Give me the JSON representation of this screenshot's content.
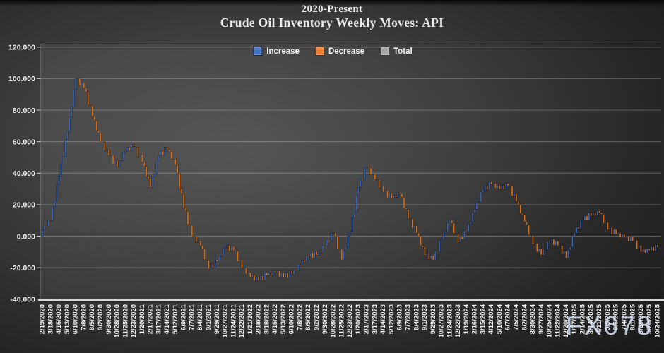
{
  "title": {
    "line1": "2020-Present",
    "line2": "Crude Oil Inventory Weekly Moves: API"
  },
  "watermark": "FX678",
  "legend": [
    {
      "label": "Increase",
      "color": "#4472C4"
    },
    {
      "label": "Decrease",
      "color": "#ED7D31"
    },
    {
      "label": "Total",
      "color": "#A5A5A5"
    }
  ],
  "colors": {
    "increase": "#4472C4",
    "decrease": "#ED7D31",
    "total": "#A5A5A5",
    "increase_bar": "#3763b4",
    "decrease_bar": "#d66c14",
    "grid": "rgba(255,255,255,0.26)",
    "axis_band": "#d6d6d6",
    "text": "#f2f2f2"
  },
  "chart_data": {
    "type": "bar",
    "subtype": "waterfall-weekly-changes",
    "title": "2020-Present Crude Oil Inventory Weekly Moves: API",
    "xlabel": "",
    "ylabel": "",
    "ylim": [
      -40,
      120
    ],
    "grid": "horizontal",
    "legend_position": "top-center",
    "y_tick_values": [
      120,
      100,
      80,
      60,
      40,
      20,
      0,
      -20,
      -40
    ],
    "y_tick_labels": [
      "120.000",
      "100.000",
      "80.000",
      "60.000",
      "40.000",
      "20.000",
      "0.000",
      "-20.000",
      "-40.000"
    ],
    "weeks_per_tick": 4,
    "x_tick_labels": [
      "2/19/2020",
      "3/18/2020",
      "4/15/2020",
      "5/13/2020",
      "6/10/2020",
      "7/8/2020",
      "8/5/2020",
      "9/2/2020",
      "9/30/2020",
      "10/28/2020",
      "11/25/2020",
      "12/23/2020",
      "1/20/2021",
      "2/17/2021",
      "3/17/2021",
      "4/14/2021",
      "5/12/2021",
      "6/9/2021",
      "7/7/2021",
      "8/4/2021",
      "9/1/2021",
      "9/29/2021",
      "10/27/2021",
      "11/24/2021",
      "12/22/2021",
      "1/21/2022",
      "2/18/2022",
      "3/18/2022",
      "4/15/2022",
      "5/13/2022",
      "6/10/2022",
      "7/8/2022",
      "8/5/2022",
      "9/2/2022",
      "9/30/2022",
      "10/28/2022",
      "11/25/2022",
      "12/23/2022",
      "1/20/2023",
      "2/17/2023",
      "3/17/2023",
      "4/14/2023",
      "5/12/2023",
      "6/9/2023",
      "7/7/2023",
      "8/4/2023",
      "9/1/2023",
      "9/29/2023",
      "10/27/2023",
      "11/24/2023",
      "12/22/2023",
      "1/19/2024",
      "2/16/2024",
      "3/15/2024",
      "4/12/2024",
      "5/10/2024",
      "6/7/2024",
      "7/5/2024",
      "8/2/2024",
      "8/30/2024",
      "9/27/2024",
      "10/25/2024",
      "11/22/2024",
      "12/20/2024",
      "1/17/2025",
      "2/14/2025",
      "3/14/2025",
      "4/11/2025",
      "5/9/2025",
      "6/6/2025",
      "7/4/2025",
      "8/1/2025",
      "8/29/2025",
      "9/26/2025",
      "10/24/2025"
    ],
    "anchor_cumulative": [
      4,
      10,
      38,
      66,
      100,
      94,
      76,
      60,
      51,
      44,
      54,
      57,
      47,
      31,
      51,
      55,
      45,
      18,
      0,
      -6,
      -21,
      -16,
      -7,
      -9,
      -20,
      -26,
      -28,
      -25,
      -23,
      -26,
      -24,
      -18,
      -13,
      -12,
      -6,
      2,
      -15,
      3,
      31,
      44,
      36,
      28,
      24,
      27,
      11,
      2,
      -12,
      -15,
      -2,
      10,
      -4,
      3,
      17,
      29,
      33,
      30,
      32,
      22,
      9,
      -5,
      -12,
      -3,
      -6,
      -14,
      2,
      10,
      13,
      15,
      4,
      1,
      -1,
      -3,
      -10,
      -9,
      -7
    ],
    "noise_pattern": [
      1.6,
      -1.2,
      1.9
    ]
  }
}
